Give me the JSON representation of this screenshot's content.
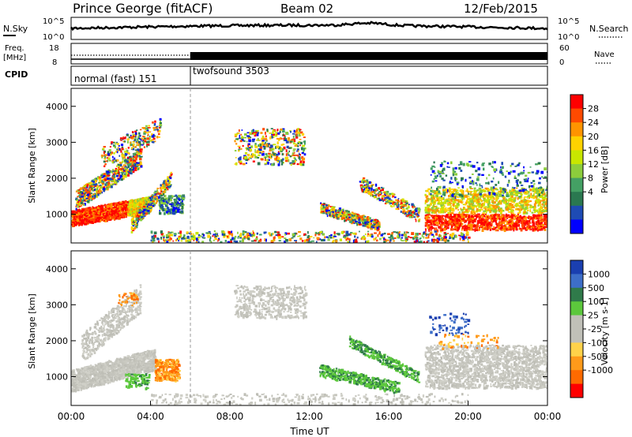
{
  "header": {
    "station": "Prince George (fitACF)",
    "beam": "Beam 02",
    "date": "12/Feb/2015"
  },
  "strips": {
    "nsky_label": "N.Sky",
    "nsearch_label": "N.Search",
    "nsky_ticks": [
      "10^5",
      "10^0"
    ],
    "nsearch_ticks": [
      "10^5",
      "10^0"
    ],
    "freq_label_1": "Freq.",
    "freq_label_2": "[MHz]",
    "freq_ticks": [
      "18",
      "8"
    ],
    "nave_label": "Nave",
    "nave_ticks": [
      "60",
      "0"
    ],
    "cpid_label": "CPID",
    "cpid_modes": [
      {
        "label": "normal (fast) 151",
        "start_hour": 0,
        "end_hour": 6
      },
      {
        "label": "twofsound 3503",
        "start_hour": 6,
        "end_hour": 24
      }
    ]
  },
  "chart_data": [
    {
      "type": "heatmap",
      "name": "power",
      "ylabel": "Slant Range [km]",
      "colorbar_label": "Power [dB]",
      "colorbar_ticks": [
        "28",
        "24",
        "20",
        "16",
        "12",
        "8",
        "4"
      ],
      "colorbar_colors": [
        "#ff0000",
        "#ff4a00",
        "#ff9400",
        "#ffd200",
        "#c8e600",
        "#8ccd3c",
        "#44a064",
        "#2a7850",
        "#1e4bb4",
        "#0000ff"
      ],
      "yticks": [
        1000,
        2000,
        3000,
        4000
      ],
      "ylim": [
        200,
        4500
      ],
      "xlim_hours": [
        0,
        24
      ],
      "mode_change_hour": 6
    },
    {
      "type": "heatmap",
      "name": "velocity",
      "ylabel": "Slant Range [km]",
      "colorbar_label": "Velocity [m s-1]",
      "colorbar_ticks": [
        "1000",
        "500",
        "100",
        "25",
        "-25",
        "-100",
        "-500",
        "-1000"
      ],
      "colorbar_colors": [
        "#1a3fb0",
        "#3d6ec8",
        "#2f7a4a",
        "#5cc83c",
        "#c0c0b8",
        "#c0c0b8",
        "#ffd24a",
        "#ff9a1a",
        "#ff6a00",
        "#ff0000"
      ],
      "yticks": [
        1000,
        2000,
        3000,
        4000
      ],
      "ylim": [
        200,
        4500
      ],
      "xlim_hours": [
        0,
        24
      ],
      "xticks": [
        "00:00",
        "04:00",
        "08:00",
        "12:00",
        "16:00",
        "20:00",
        "00:00"
      ],
      "xlabel": "Time UT",
      "mode_change_hour": 6
    }
  ]
}
